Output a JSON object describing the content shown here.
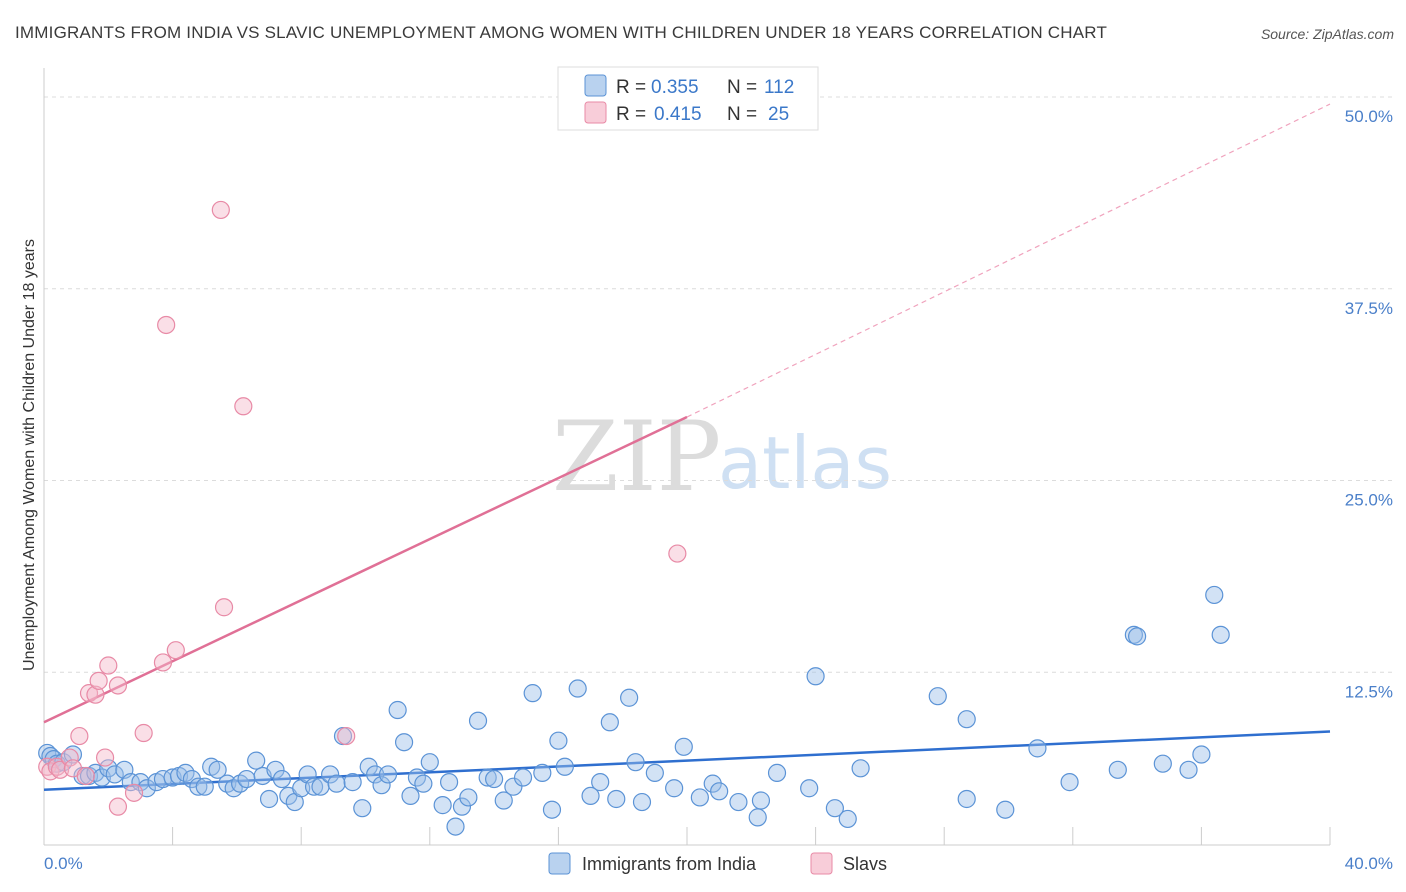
{
  "chart_data": {
    "type": "scatter",
    "title": "IMMIGRANTS FROM INDIA VS SLAVIC UNEMPLOYMENT AMONG WOMEN WITH CHILDREN UNDER 18 YEARS CORRELATION CHART",
    "source": "Source: ZipAtlas.com",
    "watermark": {
      "zip": "ZIP",
      "atlas": "atlas"
    },
    "xlabel": "",
    "ylabel": "Unemployment Among Women with Children Under 18 years",
    "xlim": [
      0,
      40
    ],
    "ylim": [
      0,
      50
    ],
    "x_tick_labels": {
      "min": "0.0%",
      "max": "40.0%"
    },
    "y_ticks": [
      {
        "value": 12.5,
        "label": "12.5%"
      },
      {
        "value": 25.0,
        "label": "25.0%"
      },
      {
        "value": 37.5,
        "label": "37.5%"
      },
      {
        "value": 50.0,
        "label": "50.0%"
      }
    ],
    "grid": true,
    "legend": {
      "position": "top-center",
      "rows": [
        {
          "r_label": "R =",
          "r_value": "0.355",
          "n_label": "N =",
          "n_value": "112",
          "color": "#9bbfe8"
        },
        {
          "r_label": "R =",
          "r_value": "0.415",
          "n_label": "N =",
          "n_value": "25",
          "color": "#f5b8c9"
        }
      ]
    },
    "series": [
      {
        "name": "Immigrants from India",
        "color": "#9bbfe8",
        "stroke": "#5b93d6",
        "trend": {
          "x0": 0,
          "y0": 3.6,
          "x1": 40,
          "y1": 7.4,
          "color": "#2f6fcf",
          "dashed_extension": false
        },
        "points": [
          [
            0.1,
            6.0
          ],
          [
            0.2,
            5.8
          ],
          [
            0.3,
            5.6
          ],
          [
            0.4,
            5.3
          ],
          [
            0.6,
            5.4
          ],
          [
            0.9,
            5.9
          ],
          [
            1.2,
            4.5
          ],
          [
            1.4,
            4.5
          ],
          [
            1.6,
            4.7
          ],
          [
            1.8,
            4.4
          ],
          [
            2.0,
            5.0
          ],
          [
            2.2,
            4.6
          ],
          [
            2.5,
            4.9
          ],
          [
            2.7,
            4.1
          ],
          [
            3.0,
            4.1
          ],
          [
            3.2,
            3.7
          ],
          [
            3.5,
            4.1
          ],
          [
            3.7,
            4.3
          ],
          [
            4.0,
            4.4
          ],
          [
            4.2,
            4.5
          ],
          [
            4.4,
            4.7
          ],
          [
            4.6,
            4.3
          ],
          [
            4.8,
            3.8
          ],
          [
            5.0,
            3.8
          ],
          [
            5.2,
            5.1
          ],
          [
            5.4,
            4.9
          ],
          [
            5.7,
            4.0
          ],
          [
            5.9,
            3.7
          ],
          [
            6.1,
            4.0
          ],
          [
            6.3,
            4.3
          ],
          [
            6.6,
            5.5
          ],
          [
            6.8,
            4.5
          ],
          [
            7.0,
            3.0
          ],
          [
            7.2,
            4.9
          ],
          [
            7.4,
            4.3
          ],
          [
            7.6,
            3.2
          ],
          [
            7.8,
            2.8
          ],
          [
            8.0,
            3.7
          ],
          [
            8.2,
            4.6
          ],
          [
            8.4,
            3.8
          ],
          [
            8.6,
            3.8
          ],
          [
            8.9,
            4.6
          ],
          [
            9.1,
            4.0
          ],
          [
            9.3,
            7.1
          ],
          [
            9.6,
            4.1
          ],
          [
            9.9,
            2.4
          ],
          [
            10.1,
            5.1
          ],
          [
            10.3,
            4.6
          ],
          [
            10.5,
            3.9
          ],
          [
            10.7,
            4.6
          ],
          [
            11.0,
            8.8
          ],
          [
            11.2,
            6.7
          ],
          [
            11.4,
            3.2
          ],
          [
            11.6,
            4.4
          ],
          [
            11.8,
            4.0
          ],
          [
            12.0,
            5.4
          ],
          [
            12.4,
            2.6
          ],
          [
            12.6,
            4.1
          ],
          [
            12.8,
            1.2
          ],
          [
            13.0,
            2.5
          ],
          [
            13.2,
            3.1
          ],
          [
            13.5,
            8.1
          ],
          [
            13.8,
            4.4
          ],
          [
            14.0,
            4.3
          ],
          [
            14.3,
            2.9
          ],
          [
            14.6,
            3.8
          ],
          [
            14.9,
            4.4
          ],
          [
            15.2,
            9.9
          ],
          [
            15.5,
            4.7
          ],
          [
            15.8,
            2.3
          ],
          [
            16.0,
            6.8
          ],
          [
            16.2,
            5.1
          ],
          [
            16.6,
            10.2
          ],
          [
            17.0,
            3.2
          ],
          [
            17.3,
            4.1
          ],
          [
            17.6,
            8.0
          ],
          [
            17.8,
            3.0
          ],
          [
            18.2,
            9.6
          ],
          [
            18.4,
            5.4
          ],
          [
            18.6,
            2.8
          ],
          [
            19.0,
            4.7
          ],
          [
            19.6,
            3.7
          ],
          [
            19.9,
            6.4
          ],
          [
            20.4,
            3.1
          ],
          [
            20.8,
            4.0
          ],
          [
            21.0,
            3.5
          ],
          [
            21.6,
            2.8
          ],
          [
            22.2,
            1.8
          ],
          [
            22.3,
            2.9
          ],
          [
            22.8,
            4.7
          ],
          [
            23.8,
            3.7
          ],
          [
            24.0,
            11.0
          ],
          [
            24.6,
            2.4
          ],
          [
            25.0,
            1.7
          ],
          [
            25.4,
            5.0
          ],
          [
            27.8,
            9.7
          ],
          [
            28.7,
            8.2
          ],
          [
            28.7,
            3.0
          ],
          [
            29.9,
            2.3
          ],
          [
            30.9,
            6.3
          ],
          [
            31.9,
            4.1
          ],
          [
            33.4,
            4.9
          ],
          [
            33.9,
            13.7
          ],
          [
            34.0,
            13.6
          ],
          [
            34.8,
            5.3
          ],
          [
            35.6,
            4.9
          ],
          [
            36.0,
            5.9
          ],
          [
            36.4,
            16.3
          ],
          [
            36.6,
            13.7
          ]
        ]
      },
      {
        "name": "Slavs",
        "color": "#f5b8c9",
        "stroke": "#e88aa6",
        "trend": {
          "x0": 0,
          "y0": 8.0,
          "x1": 20,
          "y1": 27.9,
          "x2": 40,
          "y2": 48.3,
          "color": "#e07096",
          "dashed_extension": true
        },
        "points": [
          [
            0.1,
            5.1
          ],
          [
            0.2,
            4.8
          ],
          [
            0.4,
            5.1
          ],
          [
            0.5,
            4.9
          ],
          [
            0.8,
            5.7
          ],
          [
            0.9,
            5.0
          ],
          [
            1.1,
            7.1
          ],
          [
            1.3,
            4.5
          ],
          [
            1.4,
            9.9
          ],
          [
            1.6,
            9.8
          ],
          [
            1.7,
            10.7
          ],
          [
            1.9,
            5.7
          ],
          [
            2.0,
            11.7
          ],
          [
            2.3,
            10.4
          ],
          [
            2.3,
            2.5
          ],
          [
            2.8,
            3.4
          ],
          [
            3.1,
            7.3
          ],
          [
            3.7,
            11.9
          ],
          [
            3.8,
            33.9
          ],
          [
            4.1,
            12.7
          ],
          [
            5.5,
            41.4
          ],
          [
            5.6,
            15.5
          ],
          [
            6.2,
            28.6
          ],
          [
            9.4,
            7.1
          ],
          [
            19.7,
            19.0
          ]
        ]
      }
    ]
  }
}
